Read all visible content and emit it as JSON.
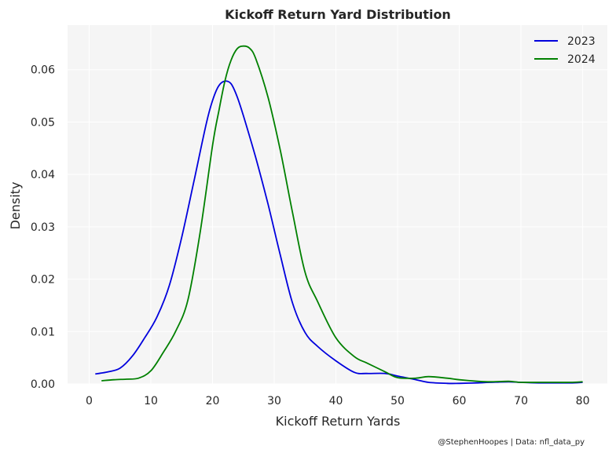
{
  "chart_data": {
    "type": "line",
    "title": "Kickoff Return Yard Distribution",
    "xlabel": "Kickoff Return Yards",
    "ylabel": "Density",
    "xlim": [
      -3.5,
      84
    ],
    "ylim": [
      0,
      0.0685
    ],
    "xticks": [
      0,
      10,
      20,
      30,
      40,
      50,
      60,
      70,
      80
    ],
    "yticks": [
      0.0,
      0.01,
      0.02,
      0.03,
      0.04,
      0.05,
      0.06
    ],
    "ytick_labels": [
      "0.00",
      "0.01",
      "0.02",
      "0.03",
      "0.04",
      "0.05",
      "0.06"
    ],
    "grid": true,
    "legend_position": "top-right",
    "credit": "@StephenHoopes | Data: nfl_data_py",
    "colors": {
      "plot_background": "#f5f5f5"
    },
    "series": [
      {
        "name": "2023",
        "color": "#0000dd",
        "x": [
          1,
          3,
          5,
          7,
          9,
          11,
          13,
          15,
          17,
          19,
          20,
          21,
          22,
          23,
          24,
          25,
          27,
          29,
          31,
          33,
          35,
          37,
          40,
          43,
          45,
          48,
          50,
          53,
          55,
          58,
          60,
          63,
          65,
          68,
          70,
          73,
          75,
          78,
          80
        ],
        "y": [
          0.0019,
          0.0023,
          0.003,
          0.0053,
          0.0088,
          0.0128,
          0.0188,
          0.028,
          0.0388,
          0.0498,
          0.0541,
          0.0569,
          0.0578,
          0.0573,
          0.0548,
          0.0512,
          0.0432,
          0.0343,
          0.0245,
          0.0153,
          0.0098,
          0.0072,
          0.0044,
          0.0022,
          0.002,
          0.002,
          0.0015,
          0.0008,
          0.0003,
          0.0001,
          0.0001,
          0.0002,
          0.0003,
          0.0004,
          0.0003,
          0.0002,
          0.0002,
          0.0002,
          0.0003
        ]
      },
      {
        "name": "2024",
        "color": "#008000",
        "x": [
          2,
          4,
          6,
          8,
          10,
          12,
          14,
          16,
          18,
          20,
          21,
          22,
          23,
          24,
          25,
          26,
          27,
          29,
          31,
          33,
          35,
          37,
          40,
          43,
          45,
          48,
          50,
          53,
          55,
          58,
          60,
          63,
          65,
          68,
          70,
          73,
          75,
          78,
          80
        ],
        "y": [
          0.0006,
          0.0008,
          0.0009,
          0.0011,
          0.0025,
          0.006,
          0.01,
          0.016,
          0.029,
          0.0455,
          0.052,
          0.0578,
          0.0618,
          0.064,
          0.0645,
          0.0641,
          0.0621,
          0.0547,
          0.0445,
          0.0325,
          0.0213,
          0.0158,
          0.0088,
          0.0052,
          0.004,
          0.0023,
          0.0012,
          0.0011,
          0.0014,
          0.0011,
          0.0008,
          0.0005,
          0.0004,
          0.0005,
          0.0003,
          0.0003,
          0.0003,
          0.0003,
          0.0004
        ]
      }
    ]
  }
}
